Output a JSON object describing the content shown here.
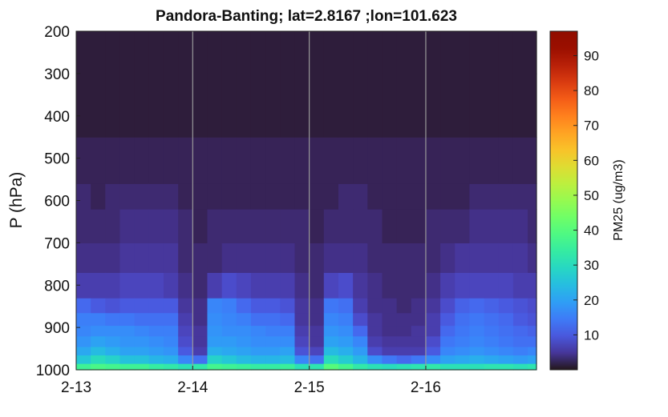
{
  "chart_data": {
    "type": "heatmap",
    "title": "Pandora-Banting; lat=2.8167 ;lon=101.623",
    "xlabel": "",
    "ylabel": "P (hPa)",
    "x_tick_labels": [
      "2-13",
      "2-14",
      "2-15",
      "2-16"
    ],
    "x_ticks_days": [
      13,
      14,
      15,
      16
    ],
    "xlim_days": [
      13,
      16.95
    ],
    "y_tick_labels": [
      "200",
      "300",
      "400",
      "500",
      "600",
      "700",
      "800",
      "900",
      "1000"
    ],
    "y_ticks": [
      200,
      300,
      400,
      500,
      600,
      700,
      800,
      900,
      1000
    ],
    "ylim": [
      200,
      1000
    ],
    "y_reversed": true,
    "day_separators": [
      14,
      15,
      16
    ],
    "colorbar": {
      "label": "PM25 (ug/m3)",
      "tick_labels": [
        "10",
        "20",
        "30",
        "40",
        "50",
        "60",
        "70",
        "80",
        "90"
      ],
      "ticks": [
        10,
        20,
        30,
        40,
        50,
        60,
        70,
        80,
        90
      ],
      "range": [
        0,
        97
      ],
      "colormap": "turbo"
    },
    "level_bottoms_hPa": [
      1000,
      985,
      965,
      945,
      920,
      895,
      865,
      830,
      770,
      700,
      620,
      560,
      450,
      300
    ],
    "level_tops_hPa": [
      985,
      965,
      945,
      920,
      895,
      865,
      830,
      770,
      700,
      620,
      560,
      450,
      300,
      200
    ],
    "time_step_hours": 3,
    "columns": [
      {
        "t": "2-13 00h",
        "pm25": [
          36,
          26,
          21,
          18,
          16,
          15,
          12,
          6,
          4,
          3,
          3,
          2,
          1,
          1
        ]
      },
      {
        "t": "2-13 03h",
        "pm25": [
          38,
          30,
          24,
          20,
          17,
          15,
          10,
          6,
          4,
          3,
          2,
          2,
          1,
          1
        ]
      },
      {
        "t": "2-13 06h",
        "pm25": [
          37,
          28,
          22,
          19,
          17,
          14,
          9,
          6,
          4,
          3,
          3,
          2,
          1,
          1
        ]
      },
      {
        "t": "2-13 09h",
        "pm25": [
          36,
          25,
          20,
          18,
          17,
          14,
          10,
          7,
          5,
          4,
          3,
          2,
          1,
          1
        ]
      },
      {
        "t": "2-13 12h",
        "pm25": [
          36,
          25,
          20,
          18,
          16,
          13,
          10,
          7,
          5,
          4,
          3,
          2,
          1,
          1
        ]
      },
      {
        "t": "2-13 15h",
        "pm25": [
          34,
          23,
          19,
          17,
          15,
          13,
          10,
          7,
          5,
          4,
          3,
          2,
          1,
          1
        ]
      },
      {
        "t": "2-13 18h",
        "pm25": [
          33,
          22,
          18,
          16,
          15,
          13,
          10,
          6,
          5,
          4,
          3,
          2,
          1,
          1
        ]
      },
      {
        "t": "2-13 21h",
        "pm25": [
          31,
          16,
          10,
          8,
          7,
          6,
          5,
          4,
          3,
          3,
          2,
          2,
          1,
          1
        ]
      },
      {
        "t": "2-14 00h",
        "pm25": [
          33,
          13,
          6,
          5,
          5,
          4,
          4,
          3,
          3,
          2,
          2,
          2,
          1,
          1
        ]
      },
      {
        "t": "2-14 03h",
        "pm25": [
          37,
          28,
          22,
          19,
          18,
          17,
          16,
          6,
          3,
          3,
          2,
          2,
          1,
          1
        ]
      },
      {
        "t": "2-14 06h",
        "pm25": [
          36,
          26,
          21,
          19,
          17,
          16,
          15,
          8,
          4,
          3,
          2,
          2,
          1,
          1
        ]
      },
      {
        "t": "2-14 09h",
        "pm25": [
          35,
          24,
          20,
          18,
          17,
          15,
          12,
          7,
          4,
          3,
          2,
          2,
          1,
          1
        ]
      },
      {
        "t": "2-14 12h",
        "pm25": [
          34,
          23,
          19,
          17,
          16,
          13,
          10,
          6,
          4,
          3,
          2,
          2,
          1,
          1
        ]
      },
      {
        "t": "2-14 15h",
        "pm25": [
          34,
          23,
          19,
          17,
          15,
          13,
          10,
          6,
          4,
          3,
          2,
          2,
          1,
          1
        ]
      },
      {
        "t": "2-14 18h",
        "pm25": [
          35,
          24,
          20,
          17,
          15,
          12,
          9,
          6,
          4,
          3,
          2,
          2,
          1,
          1
        ]
      },
      {
        "t": "2-14 21h",
        "pm25": [
          31,
          16,
          9,
          7,
          6,
          5,
          5,
          4,
          3,
          3,
          2,
          2,
          1,
          1
        ]
      },
      {
        "t": "2-15 00h",
        "pm25": [
          32,
          13,
          7,
          5,
          5,
          4,
          4,
          3,
          3,
          2,
          2,
          2,
          1,
          1
        ]
      },
      {
        "t": "2-15 03h",
        "pm25": [
          40,
          30,
          24,
          20,
          18,
          16,
          14,
          7,
          4,
          3,
          2,
          2,
          1,
          1
        ]
      },
      {
        "t": "2-15 06h",
        "pm25": [
          37,
          27,
          22,
          19,
          17,
          15,
          13,
          8,
          4,
          3,
          3,
          2,
          1,
          1
        ]
      },
      {
        "t": "2-15 09h",
        "pm25": [
          33,
          23,
          19,
          16,
          12,
          8,
          6,
          5,
          4,
          3,
          3,
          2,
          1,
          1
        ]
      },
      {
        "t": "2-15 12h",
        "pm25": [
          31,
          17,
          8,
          6,
          5,
          5,
          4,
          4,
          3,
          3,
          2,
          2,
          1,
          1
        ]
      },
      {
        "t": "2-15 15h",
        "pm25": [
          30,
          14,
          6,
          5,
          4,
          4,
          4,
          3,
          3,
          2,
          2,
          2,
          1,
          1
        ]
      },
      {
        "t": "2-15 18h",
        "pm25": [
          31,
          12,
          6,
          5,
          4,
          4,
          3,
          3,
          3,
          2,
          2,
          2,
          1,
          1
        ]
      },
      {
        "t": "2-15 21h",
        "pm25": [
          32,
          14,
          6,
          5,
          5,
          4,
          4,
          3,
          3,
          2,
          2,
          2,
          1,
          1
        ]
      },
      {
        "t": "2-16 00h",
        "pm25": [
          33,
          17,
          10,
          8,
          6,
          6,
          5,
          4,
          3,
          3,
          2,
          2,
          1,
          1
        ]
      },
      {
        "t": "2-16 03h",
        "pm25": [
          31,
          20,
          16,
          14,
          12,
          10,
          8,
          6,
          4,
          3,
          2,
          2,
          1,
          1
        ]
      },
      {
        "t": "2-16 06h",
        "pm25": [
          31,
          21,
          17,
          15,
          14,
          13,
          11,
          7,
          5,
          3,
          2,
          2,
          1,
          1
        ]
      },
      {
        "t": "2-16 09h",
        "pm25": [
          31,
          22,
          18,
          16,
          15,
          14,
          12,
          7,
          5,
          4,
          3,
          2,
          1,
          1
        ]
      },
      {
        "t": "2-16 12h",
        "pm25": [
          32,
          21,
          17,
          15,
          14,
          13,
          11,
          7,
          5,
          4,
          3,
          2,
          1,
          1
        ]
      },
      {
        "t": "2-16 15h",
        "pm25": [
          32,
          20,
          16,
          14,
          13,
          12,
          10,
          7,
          5,
          4,
          3,
          2,
          1,
          1
        ]
      },
      {
        "t": "2-16 18h",
        "pm25": [
          31,
          19,
          15,
          13,
          12,
          10,
          9,
          6,
          5,
          4,
          3,
          2,
          1,
          1
        ]
      },
      {
        "t": "2-16 21h",
        "pm25": [
          32,
          20,
          16,
          13,
          11,
          9,
          8,
          6,
          4,
          3,
          3,
          2,
          1,
          1
        ]
      }
    ]
  }
}
